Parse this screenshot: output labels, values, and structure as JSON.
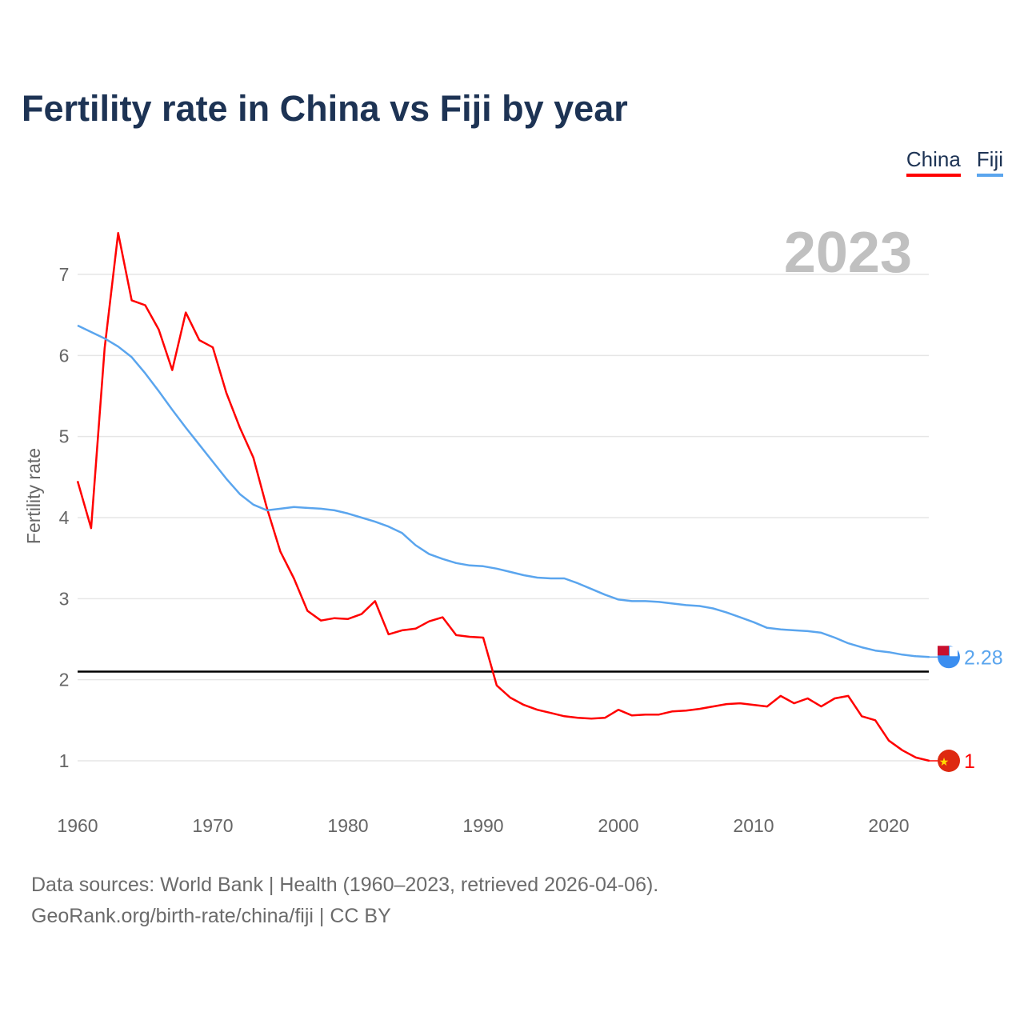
{
  "title": "Fertility rate in China vs Fiji by year",
  "legend": [
    {
      "label": "China",
      "color": "#ff0000"
    },
    {
      "label": "Fiji",
      "color": "#5aa5ee"
    }
  ],
  "year_label": "2023",
  "footer": {
    "sources": "Data sources: World Bank | Health (1960–2023, retrieved 2026-04-06).",
    "link": "GeoRank.org/birth-rate/china/fiji",
    "license": " | CC BY"
  },
  "chart_data": {
    "type": "line",
    "title": "Fertility rate in China vs Fiji by year",
    "xlabel": "",
    "ylabel": "Fertility rate",
    "xlim": [
      1960,
      2023
    ],
    "ylim": [
      0.5,
      7.5
    ],
    "x_ticks": [
      1960,
      1970,
      1980,
      1990,
      2000,
      2010,
      2020
    ],
    "y_ticks": [
      1,
      2,
      3,
      4,
      5,
      6,
      7
    ],
    "grid": true,
    "legend_position": "top-right",
    "reference_line": 2.1,
    "x": [
      1960,
      1961,
      1962,
      1963,
      1964,
      1965,
      1966,
      1967,
      1968,
      1969,
      1970,
      1971,
      1972,
      1973,
      1974,
      1975,
      1976,
      1977,
      1978,
      1979,
      1980,
      1981,
      1982,
      1983,
      1984,
      1985,
      1986,
      1987,
      1988,
      1989,
      1990,
      1991,
      1992,
      1993,
      1994,
      1995,
      1996,
      1997,
      1998,
      1999,
      2000,
      2001,
      2002,
      2003,
      2004,
      2005,
      2006,
      2007,
      2008,
      2009,
      2010,
      2011,
      2012,
      2013,
      2014,
      2015,
      2016,
      2017,
      2018,
      2019,
      2020,
      2021,
      2022,
      2023
    ],
    "series": [
      {
        "name": "China",
        "color": "#ff0000",
        "end_label": "1",
        "values": [
          4.45,
          3.87,
          6.09,
          7.51,
          6.68,
          6.62,
          6.32,
          5.82,
          6.53,
          6.19,
          6.1,
          5.54,
          5.11,
          4.74,
          4.12,
          3.58,
          3.25,
          2.85,
          2.73,
          2.76,
          2.75,
          2.81,
          2.97,
          2.56,
          2.61,
          2.63,
          2.72,
          2.77,
          2.55,
          2.53,
          2.52,
          1.93,
          1.78,
          1.69,
          1.63,
          1.59,
          1.55,
          1.53,
          1.52,
          1.53,
          1.63,
          1.56,
          1.57,
          1.57,
          1.61,
          1.62,
          1.64,
          1.67,
          1.7,
          1.71,
          1.69,
          1.67,
          1.8,
          1.71,
          1.77,
          1.67,
          1.77,
          1.8,
          1.55,
          1.5,
          1.25,
          1.13,
          1.04,
          1.0
        ]
      },
      {
        "name": "Fiji",
        "color": "#5aa5ee",
        "end_label": "2.28",
        "values": [
          6.37,
          6.29,
          6.21,
          6.11,
          5.98,
          5.78,
          5.56,
          5.33,
          5.11,
          4.9,
          4.69,
          4.48,
          4.29,
          4.16,
          4.09,
          4.11,
          4.13,
          4.12,
          4.11,
          4.09,
          4.05,
          4.0,
          3.95,
          3.89,
          3.81,
          3.66,
          3.55,
          3.49,
          3.44,
          3.41,
          3.4,
          3.37,
          3.33,
          3.29,
          3.26,
          3.25,
          3.25,
          3.19,
          3.12,
          3.05,
          2.99,
          2.97,
          2.97,
          2.96,
          2.94,
          2.92,
          2.91,
          2.88,
          2.83,
          2.77,
          2.71,
          2.64,
          2.62,
          2.61,
          2.6,
          2.58,
          2.52,
          2.45,
          2.4,
          2.36,
          2.34,
          2.31,
          2.29,
          2.28
        ]
      }
    ]
  }
}
